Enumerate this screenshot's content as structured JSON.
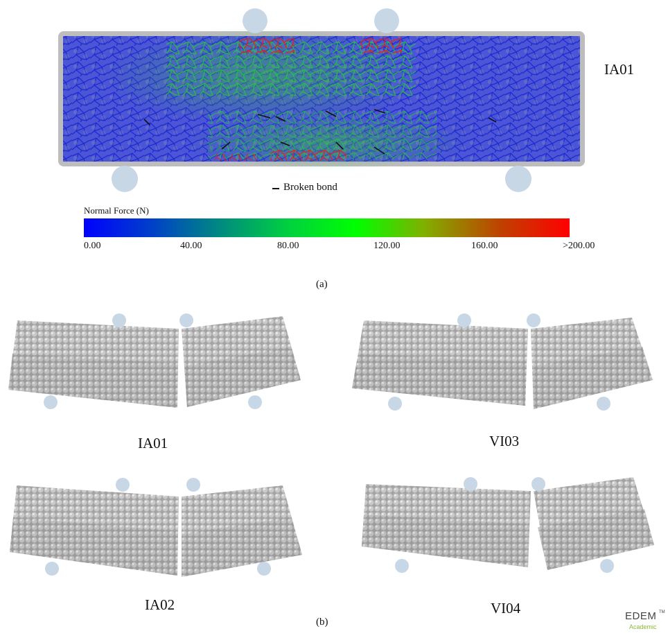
{
  "panel_a": {
    "specimen_label": "IA01",
    "legend_broken_bond": "Broken bond",
    "colorbar_title": "Normal Force (N)",
    "colorbar_ticks": [
      "0.00",
      "40.00",
      "80.00",
      "120.00",
      "160.00",
      ">200.00"
    ],
    "colorbar_colors": [
      "#0000ff",
      "#00ff00",
      "#ff0000"
    ],
    "caption": "(a)"
  },
  "panel_b": {
    "caption": "(b)",
    "specimens": [
      {
        "label": "IA01"
      },
      {
        "label": "VI03"
      },
      {
        "label": "IA02"
      },
      {
        "label": "VI04"
      }
    ]
  },
  "logo": {
    "name": "EDEM",
    "sub": "Academic",
    "tm": "TM"
  }
}
